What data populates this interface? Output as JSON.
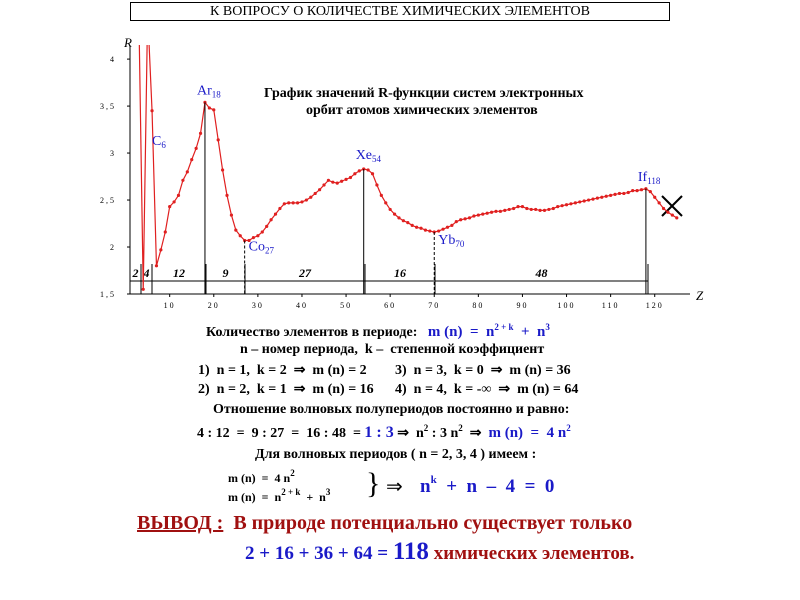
{
  "header": {
    "title": "К ВОПРОСУ О КОЛИЧЕСТВЕ  ХИМИЧЕСКИХ ЭЛЕМЕНТОВ"
  },
  "chart_data": {
    "type": "line",
    "title": [
      "График значений R-функции систем электронных",
      "орбит атомов химических элементов"
    ],
    "x_label": "Z",
    "y_label": "R",
    "x": [
      3,
      4,
      5,
      6,
      7,
      8,
      9,
      10,
      11,
      12,
      13,
      14,
      15,
      16,
      17,
      18,
      19,
      20,
      21,
      22,
      23,
      24,
      25,
      26,
      27,
      28,
      29,
      30,
      31,
      32,
      33,
      34,
      35,
      36,
      37,
      38,
      39,
      40,
      41,
      42,
      43,
      44,
      45,
      46,
      47,
      48,
      49,
      50,
      51,
      52,
      53,
      54,
      55,
      56,
      57,
      58,
      59,
      60,
      61,
      62,
      63,
      64,
      65,
      66,
      67,
      68,
      69,
      70,
      71,
      72,
      73,
      74,
      75,
      76,
      77,
      78,
      79,
      80,
      81,
      82,
      83,
      84,
      85,
      86,
      87,
      88,
      89,
      90,
      91,
      92,
      93,
      94,
      95,
      96,
      97,
      98,
      99,
      100,
      101,
      102,
      103,
      104,
      105,
      106,
      107,
      108,
      109,
      110,
      111,
      112,
      113,
      114,
      115,
      116,
      117,
      118,
      119,
      120,
      121,
      122,
      123,
      124,
      125
    ],
    "series": [
      {
        "color": "#e02020",
        "values": [
          4.5,
          1.55,
          4.5,
          3.45,
          1.8,
          1.97,
          2.16,
          2.43,
          2.48,
          2.55,
          2.71,
          2.8,
          2.93,
          3.05,
          3.21,
          3.54,
          3.48,
          3.46,
          3.14,
          2.82,
          2.55,
          2.34,
          2.18,
          2.12,
          2.07,
          2.07,
          2.1,
          2.12,
          2.16,
          2.22,
          2.29,
          2.35,
          2.41,
          2.46,
          2.47,
          2.47,
          2.47,
          2.48,
          2.5,
          2.53,
          2.57,
          2.61,
          2.66,
          2.71,
          2.69,
          2.68,
          2.7,
          2.72,
          2.74,
          2.78,
          2.81,
          2.83,
          2.82,
          2.78,
          2.66,
          2.55,
          2.47,
          2.4,
          2.35,
          2.31,
          2.28,
          2.26,
          2.23,
          2.21,
          2.2,
          2.18,
          2.17,
          2.16,
          2.17,
          2.19,
          2.21,
          2.23,
          2.27,
          2.29,
          2.3,
          2.31,
          2.33,
          2.34,
          2.35,
          2.36,
          2.37,
          2.38,
          2.38,
          2.39,
          2.4,
          2.41,
          2.43,
          2.43,
          2.41,
          2.4,
          2.4,
          2.39,
          2.39,
          2.4,
          2.41,
          2.43,
          2.44,
          2.45,
          2.46,
          2.47,
          2.48,
          2.49,
          2.5,
          2.51,
          2.52,
          2.53,
          2.54,
          2.55,
          2.56,
          2.57,
          2.57,
          2.58,
          2.6,
          2.6,
          2.61,
          2.62,
          2.59,
          2.53,
          2.47,
          2.41,
          2.37,
          2.34,
          2.31
        ]
      }
    ],
    "xlim": [
      1,
      128
    ],
    "xticks": [
      10,
      20,
      30,
      40,
      50,
      60,
      70,
      80,
      90,
      100,
      110,
      120
    ],
    "ylim": [
      1.5,
      4.15
    ],
    "yticks": [
      {
        "value": 1.5,
        "label": "1,5"
      },
      2,
      {
        "value": 2.5,
        "label": "2,5"
      },
      3,
      {
        "value": 3.5,
        "label": "3,5"
      },
      4
    ],
    "annotations": [
      {
        "text": "C",
        "sub": "6"
      },
      {
        "text": "Ar",
        "sub": "18",
        "drop": "solid"
      },
      {
        "text": "Co",
        "sub": "27",
        "drop": "dashed"
      },
      {
        "text": "Xe",
        "sub": "54",
        "drop": "solid"
      },
      {
        "text": "Yb",
        "sub": "70",
        "drop": "dashed"
      },
      {
        "text": "If",
        "sub": "118",
        "drop": "solid"
      }
    ],
    "period_labels": [
      "2",
      "4",
      "12",
      "9",
      "27",
      "16",
      "48"
    ]
  },
  "text": {
    "line1": [
      "Количество элементов в периоде:",
      "m (n)  =  n",
      "2 + k",
      "  +  n",
      "3"
    ],
    "line2": "n – номер периода,  k –  степенной коэффициент",
    "cases": [
      "1)  n = 1,  k = 2  ⇒  m (n) = 2",
      "3)  n = 3,  k = 0  ⇒  m (n) = 36",
      "2)  n = 2,  k = 1  ⇒  m (n) = 16",
      "4)  n = 4,  k = -∞  ⇒  m (n) = 64"
    ],
    "ratio_title": "Отношение волновых полупериодов постоянно и равно:",
    "ratio": [
      "4 : 12  =  9 : 27  =  16 : 48  = ",
      "1 : 3",
      " ⇒  n",
      "2",
      " : 3 n",
      "2",
      "  ⇒  ",
      "m (n)  =  4 n",
      "2"
    ],
    "periods_title": "Для волновых периодов ( n = 2, 3, 4 ) имеем :",
    "system1": [
      "m (n)  =  4 n",
      "2"
    ],
    "system2": [
      "m (n)  =  n",
      "2 + k",
      "  +  n",
      "3"
    ],
    "implies": "⇒",
    "equation": [
      "n",
      "k",
      "  +  n  –  4  =  0"
    ],
    "conclusion1": [
      "ВЫВОД :",
      "  В природе потенциально существует только"
    ],
    "conclusion2": [
      "2 + 16 + 36 + 64 = ",
      "118",
      " химических элементов."
    ]
  }
}
